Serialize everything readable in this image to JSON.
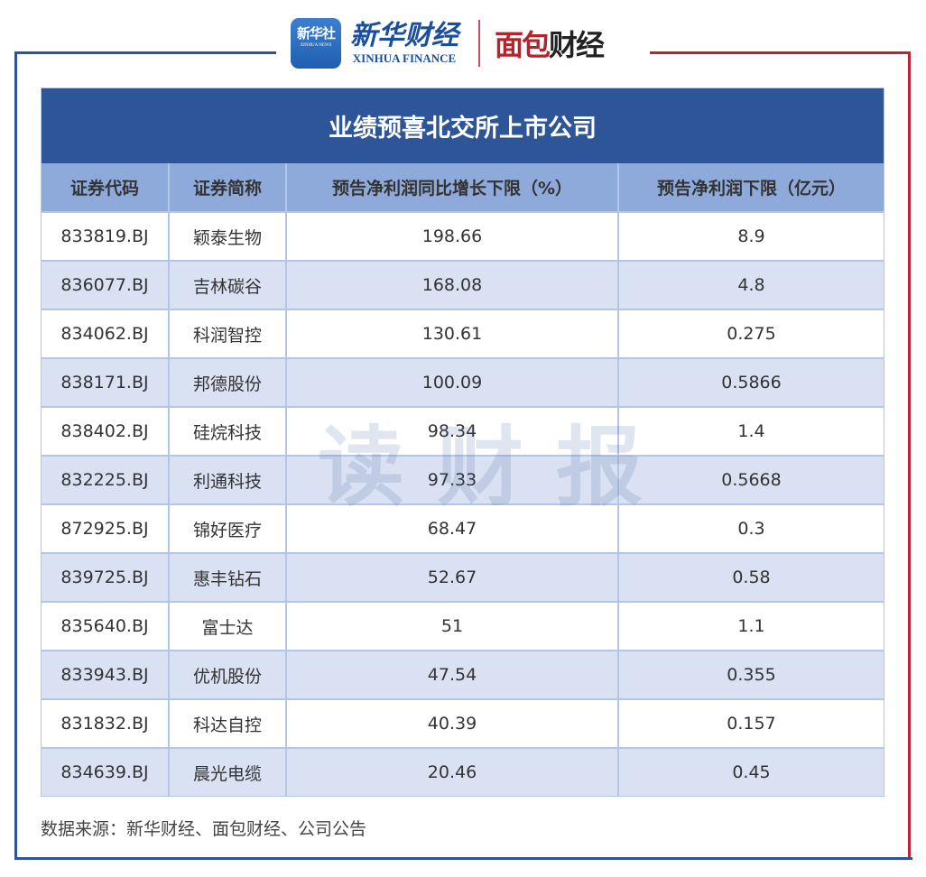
{
  "logos": {
    "xinhua_news_cn": "新华社",
    "xinhua_news_en": "XINHUA NEWS",
    "xinhua_finance_cn": "新华财经",
    "xinhua_finance_en": "XINHUA FINANCE",
    "mianbao_part1": "面包",
    "mianbao_part2": "财经"
  },
  "colors": {
    "title_bg": "#2e5597",
    "header_bg": "#8eaadb",
    "alt_row_bg": "#d9e1f2",
    "frame_blue": "#2b5597",
    "frame_red": "#c0232f"
  },
  "watermark": "读财报",
  "source": "数据来源：新华财经、面包财经、公司公告",
  "chart_data": {
    "type": "table",
    "title": "业绩预喜北交所上市公司",
    "columns": [
      "证券代码",
      "证券简称",
      "预告净利润同比增长下限（%）",
      "预告净利润下限（亿元）"
    ],
    "rows": [
      [
        "833819.BJ",
        "颖泰生物",
        "198.66",
        "8.9"
      ],
      [
        "836077.BJ",
        "吉林碳谷",
        "168.08",
        "4.8"
      ],
      [
        "834062.BJ",
        "科润智控",
        "130.61",
        "0.275"
      ],
      [
        "838171.BJ",
        "邦德股份",
        "100.09",
        "0.5866"
      ],
      [
        "838402.BJ",
        "硅烷科技",
        "98.34",
        "1.4"
      ],
      [
        "832225.BJ",
        "利通科技",
        "97.33",
        "0.5668"
      ],
      [
        "872925.BJ",
        "锦好医疗",
        "68.47",
        "0.3"
      ],
      [
        "839725.BJ",
        "惠丰钻石",
        "52.67",
        "0.58"
      ],
      [
        "835640.BJ",
        "富士达",
        "51",
        "1.1"
      ],
      [
        "833943.BJ",
        "优机股份",
        "47.54",
        "0.355"
      ],
      [
        "831832.BJ",
        "科达自控",
        "40.39",
        "0.157"
      ],
      [
        "834639.BJ",
        "晨光电缆",
        "20.46",
        "0.45"
      ]
    ]
  }
}
